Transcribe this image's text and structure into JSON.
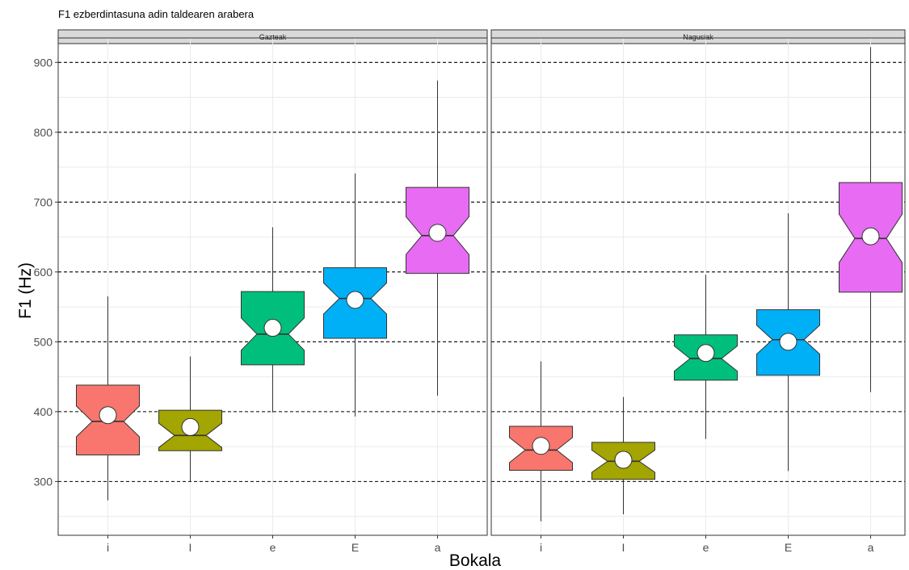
{
  "chart_data": {
    "type": "boxplot",
    "title": "F1 ezberdintasuna adin taldearen arabera",
    "xlabel": "Bokala",
    "ylabel": "F1 (Hz)",
    "ylim": [
      223,
      935
    ],
    "yticks": [
      300,
      400,
      500,
      600,
      700,
      800,
      900
    ],
    "y_major_gridlines": "dashed",
    "notched": true,
    "mean_markers": true,
    "categories": [
      "i",
      "I",
      "e",
      "E",
      "a"
    ],
    "colors": {
      "i": "#F8766D",
      "I": "#A3A500",
      "e": "#00BF7D",
      "E": "#00B0F6",
      "a": "#E76BF3"
    },
    "panels": [
      {
        "strip": "Gazteak",
        "boxes": [
          {
            "category": "i",
            "whisker_low": 273,
            "q1": 338,
            "median": 386,
            "q3": 438,
            "whisker_high": 565,
            "mean": 395
          },
          {
            "category": "I",
            "whisker_low": 300,
            "q1": 344,
            "median": 366,
            "q3": 402,
            "whisker_high": 479,
            "mean": 378
          },
          {
            "category": "e",
            "whisker_low": 399,
            "q1": 467,
            "median": 511,
            "q3": 572,
            "whisker_high": 664,
            "mean": 520
          },
          {
            "category": "E",
            "whisker_low": 393,
            "q1": 505,
            "median": 562,
            "q3": 606,
            "whisker_high": 741,
            "mean": 560
          },
          {
            "category": "a",
            "whisker_low": 423,
            "q1": 598,
            "median": 652,
            "q3": 721,
            "whisker_high": 874,
            "mean": 656
          }
        ]
      },
      {
        "strip": "Nagusiak",
        "boxes": [
          {
            "category": "i",
            "whisker_low": 243,
            "q1": 316,
            "median": 345,
            "q3": 379,
            "whisker_high": 472,
            "mean": 351
          },
          {
            "category": "I",
            "whisker_low": 253,
            "q1": 303,
            "median": 329,
            "q3": 356,
            "whisker_high": 421,
            "mean": 331
          },
          {
            "category": "e",
            "whisker_low": 361,
            "q1": 445,
            "median": 476,
            "q3": 510,
            "whisker_high": 596,
            "mean": 484
          },
          {
            "category": "E",
            "whisker_low": 315,
            "q1": 452,
            "median": 503,
            "q3": 546,
            "whisker_high": 684,
            "mean": 500
          },
          {
            "category": "a",
            "whisker_low": 428,
            "q1": 571,
            "median": 648,
            "q3": 728,
            "whisker_high": 922,
            "mean": 651
          }
        ]
      }
    ]
  }
}
